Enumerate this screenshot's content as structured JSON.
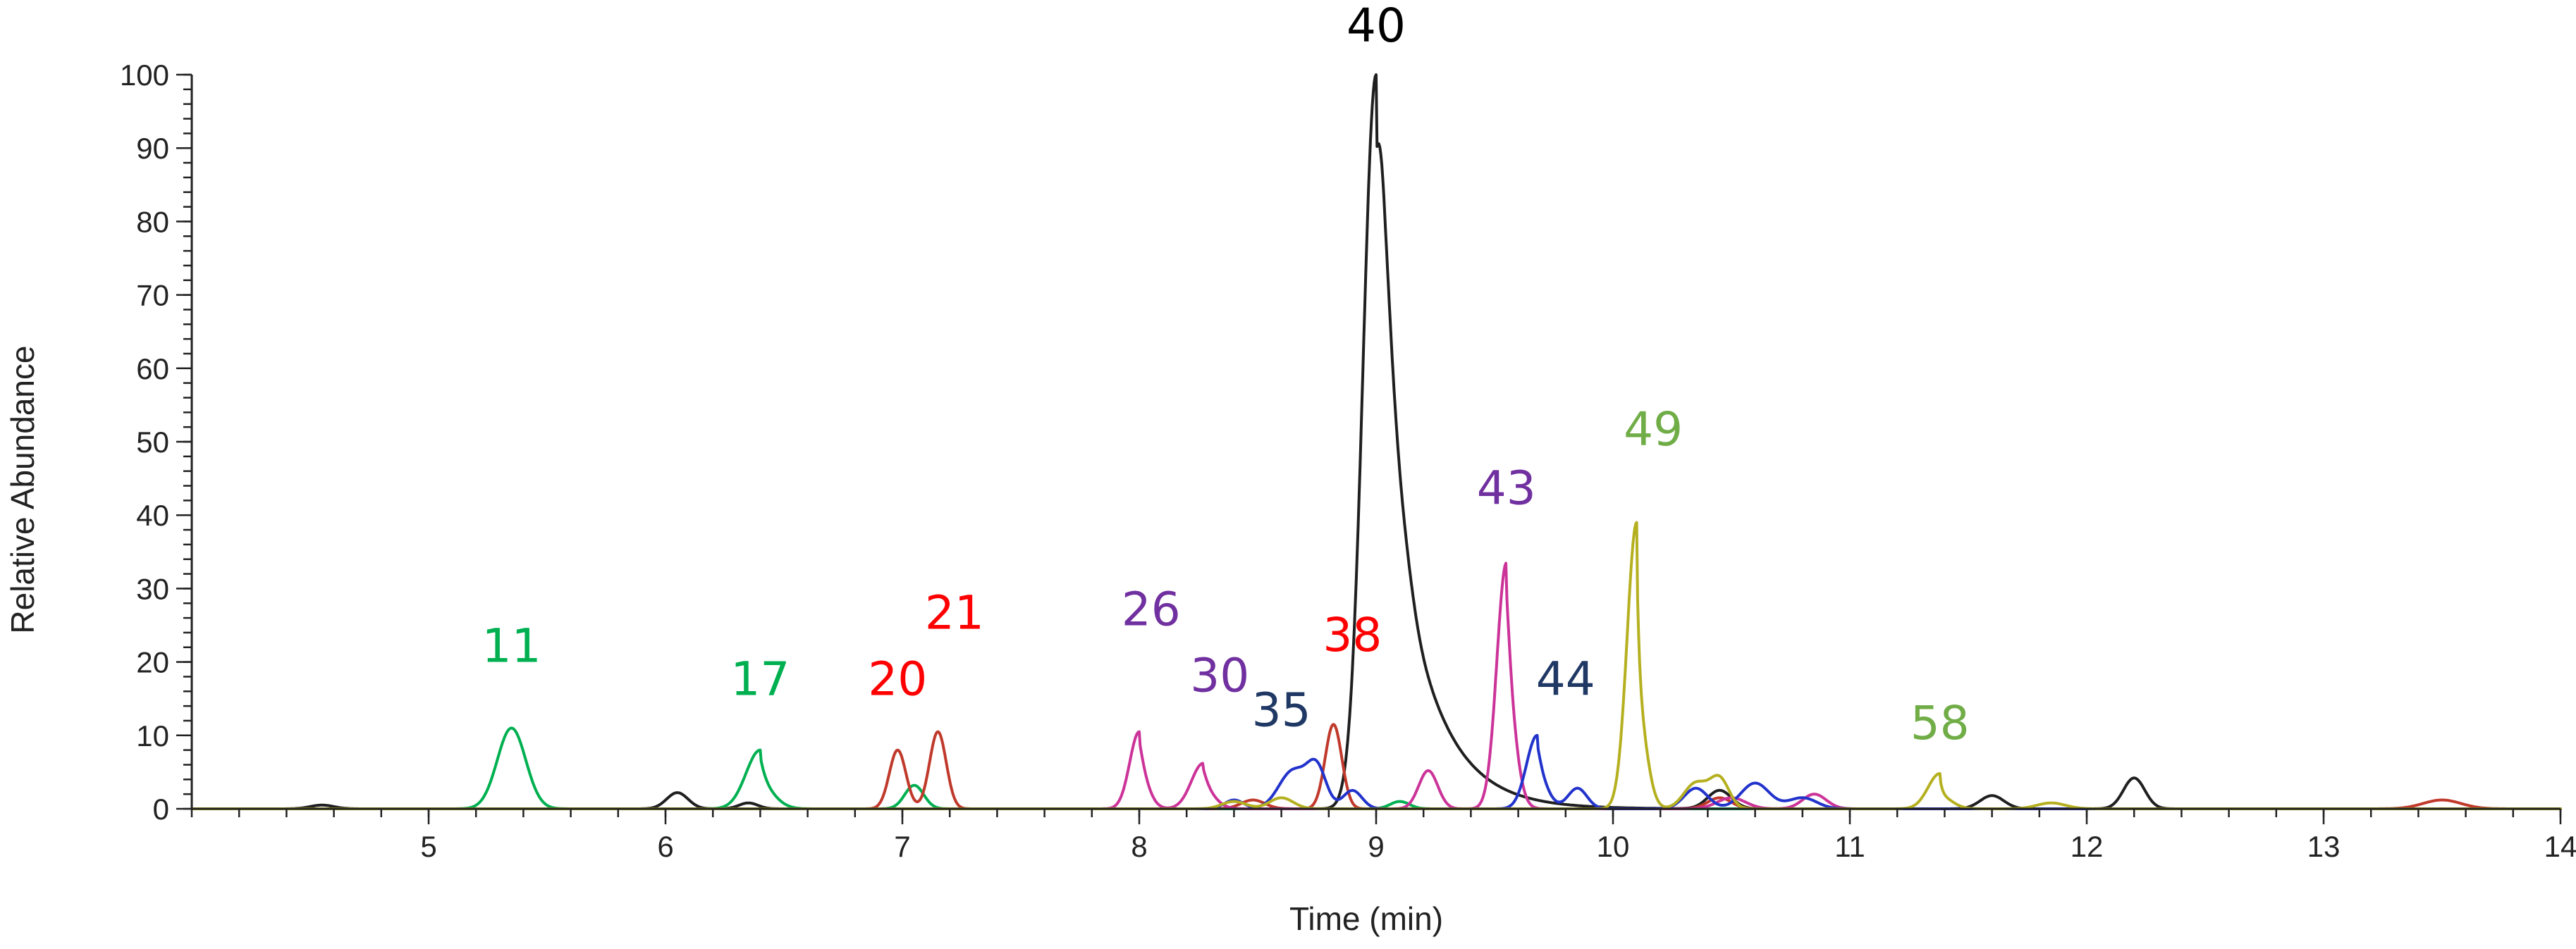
{
  "chart_data": {
    "type": "line",
    "xlabel": "Time (min)",
    "ylabel": "Relative Abundance",
    "xlim": [
      4,
      14
    ],
    "ylim": [
      0,
      100
    ],
    "x_ticks": [
      "5",
      "6",
      "7",
      "8",
      "9",
      "10",
      "11",
      "12",
      "13",
      "14"
    ],
    "y_ticks": [
      "0",
      "10",
      "20",
      "30",
      "40",
      "50",
      "60",
      "70",
      "80",
      "90",
      "100"
    ],
    "grid": false,
    "series": [
      {
        "color": "#1f1f1f",
        "peaks": [
          {
            "t": 4.55,
            "h": 0.5,
            "w": 0.05,
            "tail": 0
          },
          {
            "t": 6.05,
            "h": 2.2,
            "w": 0.045,
            "tail": 0
          },
          {
            "t": 6.35,
            "h": 0.8,
            "w": 0.04,
            "tail": 0
          },
          {
            "t": 9.0,
            "h": 100,
            "w": 0.055,
            "tail": 0.17
          },
          {
            "t": 9.12,
            "h": 3.5,
            "w": 0.04,
            "tail": 0
          },
          {
            "t": 10.45,
            "h": 2.5,
            "w": 0.05,
            "tail": 0
          },
          {
            "t": 11.6,
            "h": 1.8,
            "w": 0.05,
            "tail": 0
          },
          {
            "t": 12.2,
            "h": 4.2,
            "w": 0.045,
            "tail": 0
          }
        ]
      },
      {
        "color": "#00b050",
        "peaks": [
          {
            "t": 5.35,
            "h": 11,
            "w": 0.06,
            "tail": 0
          },
          {
            "t": 6.4,
            "h": 8,
            "w": 0.06,
            "tail": 0.02
          },
          {
            "t": 7.05,
            "h": 3.2,
            "w": 0.04,
            "tail": 0
          },
          {
            "t": 9.1,
            "h": 1.0,
            "w": 0.04,
            "tail": 0
          }
        ]
      },
      {
        "color": "#c0392b",
        "peaks": [
          {
            "t": 6.98,
            "h": 8,
            "w": 0.035,
            "tail": 0
          },
          {
            "t": 7.15,
            "h": 10.5,
            "w": 0.035,
            "tail": 0
          },
          {
            "t": 8.48,
            "h": 1.2,
            "w": 0.05,
            "tail": 0
          },
          {
            "t": 8.82,
            "h": 11.5,
            "w": 0.035,
            "tail": 0
          },
          {
            "t": 10.45,
            "h": 1.5,
            "w": 0.05,
            "tail": 0
          },
          {
            "t": 13.5,
            "h": 1.2,
            "w": 0.08,
            "tail": 0
          }
        ]
      },
      {
        "color": "#cc3399",
        "peaks": [
          {
            "t": 8.0,
            "h": 10.5,
            "w": 0.04,
            "tail": 0.02
          },
          {
            "t": 8.27,
            "h": 6.2,
            "w": 0.05,
            "tail": 0.02
          },
          {
            "t": 9.22,
            "h": 5.2,
            "w": 0.04,
            "tail": 0
          },
          {
            "t": 9.55,
            "h": 33.5,
            "w": 0.04,
            "tail": 0.02
          },
          {
            "t": 10.5,
            "h": 1.5,
            "w": 0.06,
            "tail": 0
          },
          {
            "t": 10.85,
            "h": 2.0,
            "w": 0.05,
            "tail": 0
          }
        ]
      },
      {
        "color": "#2233cc",
        "peaks": [
          {
            "t": 8.4,
            "h": 1.2,
            "w": 0.04,
            "tail": 0
          },
          {
            "t": 8.65,
            "h": 5.2,
            "w": 0.06,
            "tail": 0
          },
          {
            "t": 8.75,
            "h": 5.2,
            "w": 0.04,
            "tail": 0
          },
          {
            "t": 8.9,
            "h": 2.5,
            "w": 0.04,
            "tail": 0
          },
          {
            "t": 9.68,
            "h": 10,
            "w": 0.045,
            "tail": 0.02
          },
          {
            "t": 9.85,
            "h": 2.8,
            "w": 0.04,
            "tail": 0
          },
          {
            "t": 10.35,
            "h": 2.8,
            "w": 0.05,
            "tail": 0
          },
          {
            "t": 10.6,
            "h": 3.5,
            "w": 0.06,
            "tail": 0
          },
          {
            "t": 10.8,
            "h": 1.5,
            "w": 0.06,
            "tail": 0
          }
        ]
      },
      {
        "color": "#b5b020",
        "peaks": [
          {
            "t": 8.4,
            "h": 1.0,
            "w": 0.05,
            "tail": 0
          },
          {
            "t": 8.6,
            "h": 1.5,
            "w": 0.05,
            "tail": 0
          },
          {
            "t": 10.1,
            "h": 39,
            "w": 0.04,
            "tail": 0.01
          },
          {
            "t": 10.35,
            "h": 3.5,
            "w": 0.05,
            "tail": 0
          },
          {
            "t": 10.45,
            "h": 4.0,
            "w": 0.04,
            "tail": 0
          },
          {
            "t": 11.38,
            "h": 4.8,
            "w": 0.05,
            "tail": 0.01
          },
          {
            "t": 11.85,
            "h": 0.8,
            "w": 0.06,
            "tail": 0
          }
        ]
      }
    ],
    "annotations": [
      {
        "text": "11",
        "x": 5.35,
        "y": 20.0,
        "color": "#00b050"
      },
      {
        "text": "17",
        "x": 6.4,
        "y": 15.5,
        "color": "#00b050"
      },
      {
        "text": "20",
        "x": 6.98,
        "y": 15.5,
        "color": "#ff0000"
      },
      {
        "text": "21",
        "x": 7.22,
        "y": 24.5,
        "color": "#ff0000"
      },
      {
        "text": "26",
        "x": 8.05,
        "y": 25.0,
        "color": "#7030a0"
      },
      {
        "text": "30",
        "x": 8.34,
        "y": 16.0,
        "color": "#7030a0"
      },
      {
        "text": "35",
        "x": 8.6,
        "y": 11.3,
        "color": "#1f3864"
      },
      {
        "text": "38",
        "x": 8.9,
        "y": 21.5,
        "color": "#ff0000"
      },
      {
        "text": "40",
        "x": 9.0,
        "y": 104.5,
        "color": "#000000"
      },
      {
        "text": "43",
        "x": 9.55,
        "y": 41.5,
        "color": "#7030a0"
      },
      {
        "text": "44",
        "x": 9.8,
        "y": 15.5,
        "color": "#1f3864"
      },
      {
        "text": "49",
        "x": 10.17,
        "y": 49.5,
        "color": "#70ad47"
      },
      {
        "text": "58",
        "x": 11.38,
        "y": 9.5,
        "color": "#70ad47"
      }
    ]
  }
}
